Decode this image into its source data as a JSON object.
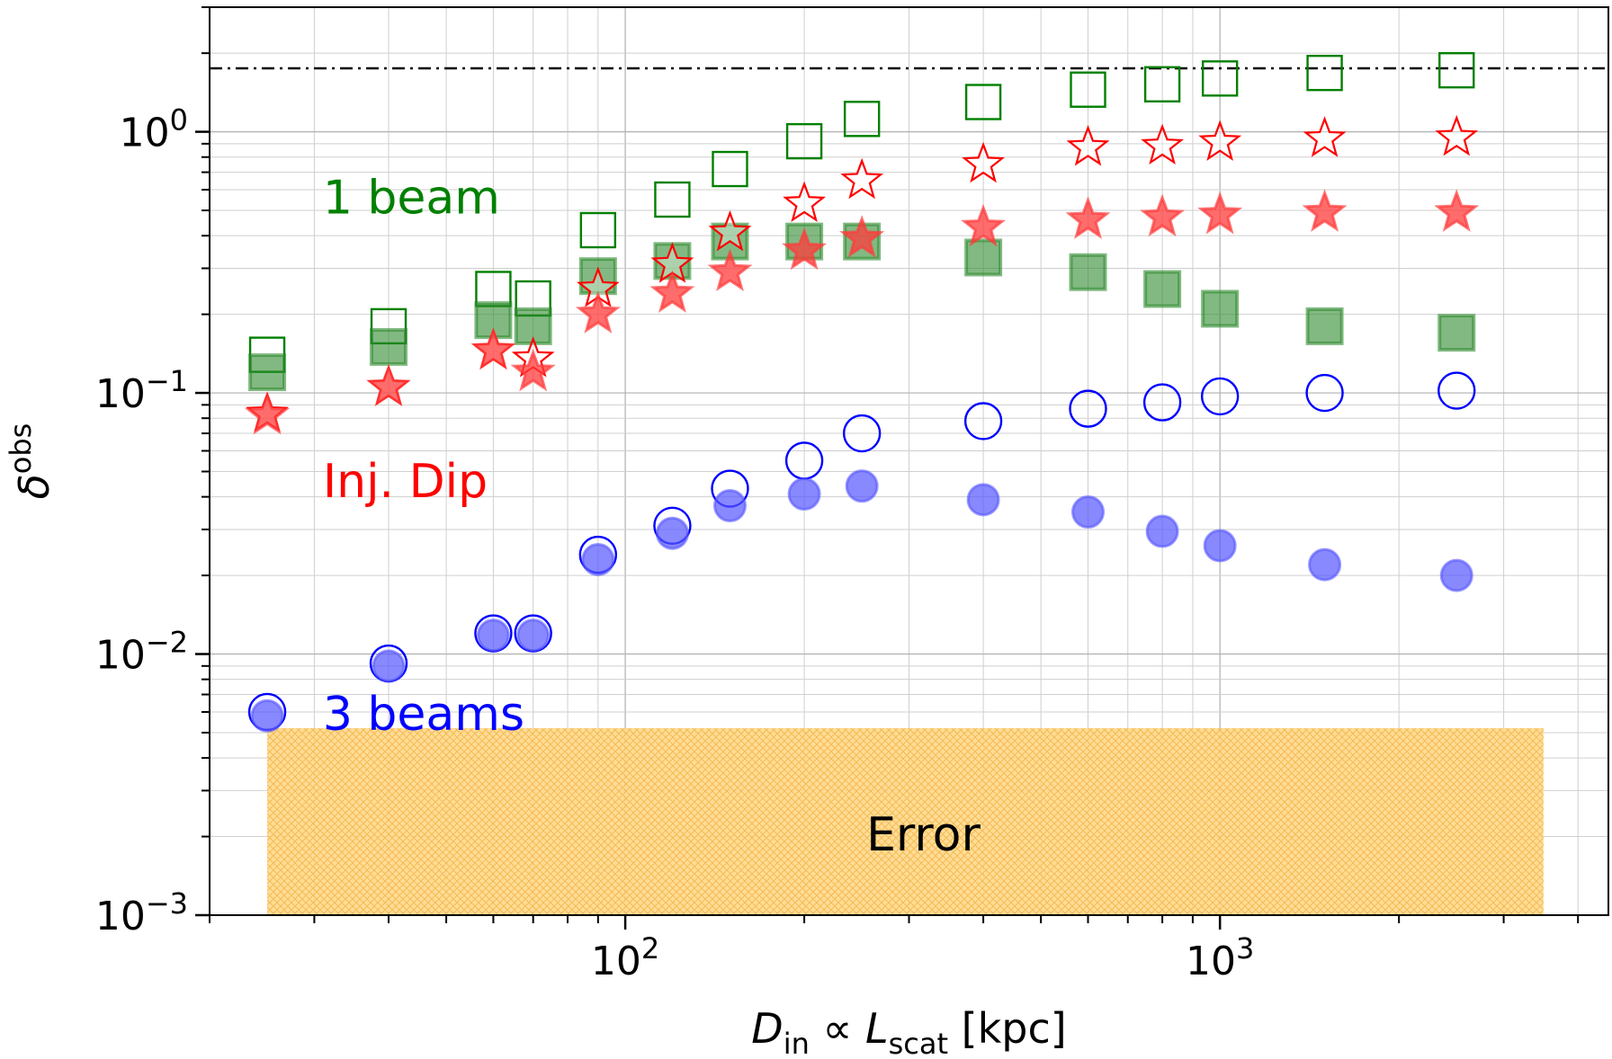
{
  "chart_data": {
    "type": "scatter",
    "xscale": "log",
    "yscale": "log",
    "xlim": [
      20,
      4500
    ],
    "ylim": [
      0.001,
      3.0
    ],
    "grid": true,
    "xlabel": "D_in ∝ L_scat [kpc]",
    "ylabel": "δ^obs",
    "x_ticks": [
      {
        "value": 100,
        "base": "10",
        "exp": "2"
      },
      {
        "value": 1000,
        "base": "10",
        "exp": "3"
      }
    ],
    "y_ticks": [
      {
        "value": 0.001,
        "base": "10",
        "exp": "−3"
      },
      {
        "value": 0.01,
        "base": "10",
        "exp": "−2"
      },
      {
        "value": 0.1,
        "base": "10",
        "exp": "−1"
      },
      {
        "value": 1.0,
        "base": "10",
        "exp": "0"
      }
    ],
    "reference_line": {
      "y": 1.75,
      "style": "dash-dot",
      "color": "#000000"
    },
    "error_band": {
      "x": [
        25,
        3500
      ],
      "y": [
        0.001,
        0.0052
      ],
      "label": "Error",
      "color": "#ffc04d"
    },
    "annotations": [
      {
        "text": "1 beam",
        "color": "#008000"
      },
      {
        "text": "Inj. Dip",
        "color": "#ff0000"
      },
      {
        "text": "3 beams",
        "color": "#0000ff"
      }
    ],
    "x": [
      25,
      40,
      60,
      70,
      90,
      120,
      150,
      200,
      250,
      400,
      600,
      800,
      1000,
      1500,
      2500
    ],
    "series": [
      {
        "marker": "square",
        "fill": "open",
        "color": "#008000",
        "values": [
          0.14,
          0.18,
          0.25,
          0.23,
          0.42,
          0.55,
          0.72,
          0.92,
          1.12,
          1.3,
          1.45,
          1.52,
          1.6,
          1.68,
          1.72
        ]
      },
      {
        "marker": "square",
        "fill": "filled",
        "color": "#2e8b2e",
        "values": [
          0.12,
          0.15,
          0.19,
          0.18,
          0.28,
          0.32,
          0.38,
          0.38,
          0.38,
          0.33,
          0.29,
          0.25,
          0.21,
          0.18,
          0.17
        ]
      },
      {
        "marker": "star",
        "fill": "open",
        "color": "#ff0000",
        "values": [
          0.083,
          0.105,
          0.145,
          0.135,
          0.25,
          0.31,
          0.41,
          0.53,
          0.65,
          0.75,
          0.87,
          0.88,
          0.91,
          0.94,
          0.95
        ]
      },
      {
        "marker": "star",
        "fill": "filled",
        "color": "#ff3b3b",
        "values": [
          0.082,
          0.105,
          0.145,
          0.12,
          0.2,
          0.24,
          0.29,
          0.35,
          0.39,
          0.43,
          0.46,
          0.47,
          0.48,
          0.49,
          0.49
        ]
      },
      {
        "marker": "circle",
        "fill": "open",
        "color": "#0000ff",
        "values": [
          0.006,
          0.0092,
          0.012,
          0.012,
          0.024,
          0.031,
          0.043,
          0.055,
          0.07,
          0.078,
          0.087,
          0.092,
          0.097,
          0.1,
          0.102
        ]
      },
      {
        "marker": "circle",
        "fill": "filled",
        "color": "#5555ff",
        "values": [
          0.0058,
          0.009,
          0.0118,
          0.0118,
          0.023,
          0.029,
          0.037,
          0.041,
          0.044,
          0.039,
          0.035,
          0.0295,
          0.026,
          0.022,
          0.02
        ]
      }
    ]
  }
}
